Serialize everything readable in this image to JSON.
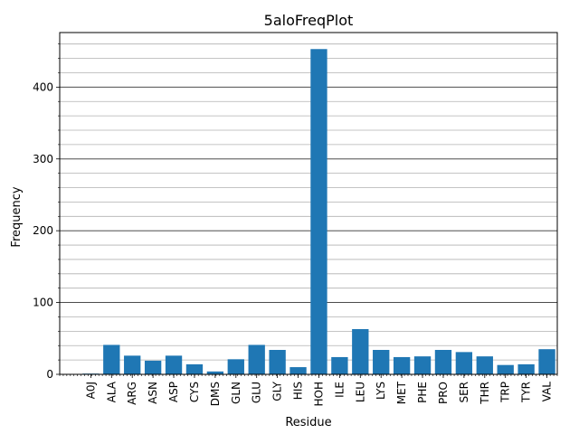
{
  "chart_data": {
    "type": "bar",
    "title": "5aloFreqPlot",
    "xlabel": "Residue",
    "ylabel": "Frequency",
    "categories": [
      "A0J",
      "ALA",
      "ARG",
      "ASN",
      "ASP",
      "CYS",
      "DMS",
      "GLN",
      "GLU",
      "GLY",
      "HIS",
      "HOH",
      "ILE",
      "LEU",
      "LYS",
      "MET",
      "PHE",
      "PRO",
      "SER",
      "THR",
      "TRP",
      "TYR",
      "VAL"
    ],
    "values": [
      1,
      41,
      26,
      19,
      26,
      14,
      4,
      21,
      41,
      34,
      10,
      453,
      24,
      63,
      34,
      24,
      25,
      34,
      31,
      25,
      13,
      14,
      35
    ],
    "ylim": [
      0,
      476
    ],
    "yticks": [
      0,
      100,
      200,
      300,
      400
    ],
    "grid": "horizontal, major and minor",
    "bar_color": "#1f77b4"
  }
}
